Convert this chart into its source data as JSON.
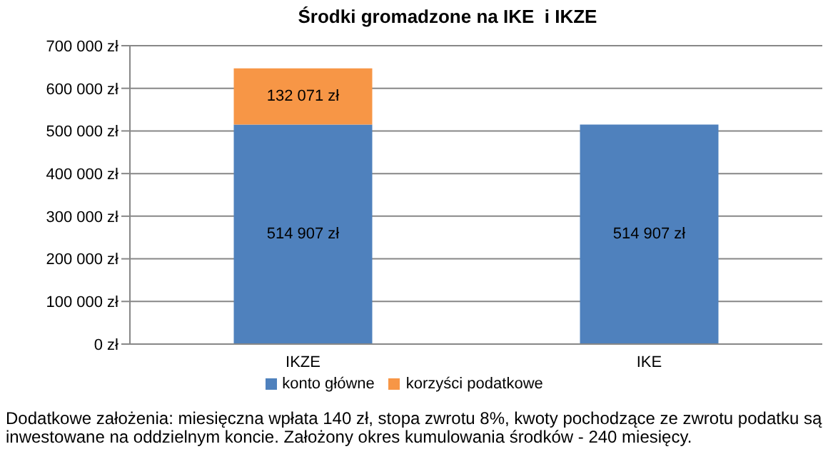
{
  "chart_data": {
    "type": "bar",
    "title": "Środki gromadzone na IKE  i IKZE",
    "categories": [
      "IKZE",
      "IKE"
    ],
    "stacked": true,
    "series": [
      {
        "name": "konto główne",
        "color": "#4f81bd",
        "values": [
          514907,
          514907
        ],
        "value_labels": [
          "514 907 zł",
          "514 907 zł"
        ]
      },
      {
        "name": "korzyści podatkowe",
        "color": "#f79646",
        "values": [
          132071,
          null
        ],
        "value_labels": [
          "132 071 zł",
          null
        ]
      }
    ],
    "ylim": [
      0,
      700000
    ],
    "yticks": [
      {
        "value": 0,
        "label": "0 zł"
      },
      {
        "value": 100000,
        "label": "100 000 zł"
      },
      {
        "value": 200000,
        "label": "200 000 zł"
      },
      {
        "value": 300000,
        "label": "300 000 zł"
      },
      {
        "value": 400000,
        "label": "400 000 zł"
      },
      {
        "value": 500000,
        "label": "500 000 zł"
      },
      {
        "value": 600000,
        "label": "600 000 zł"
      },
      {
        "value": 700000,
        "label": "700 000 zł"
      }
    ],
    "grid": "y",
    "legend": "bottom",
    "annotations": [
      "Dodatkowe założenia: miesięczna wpłata 140 zł, stopa zwrotu 8%, kwoty pochodzące ze zwrotu podatku są inwestowane  na oddzielnym koncie. Założony okres kumulowania  środków - 240 miesięcy."
    ]
  }
}
